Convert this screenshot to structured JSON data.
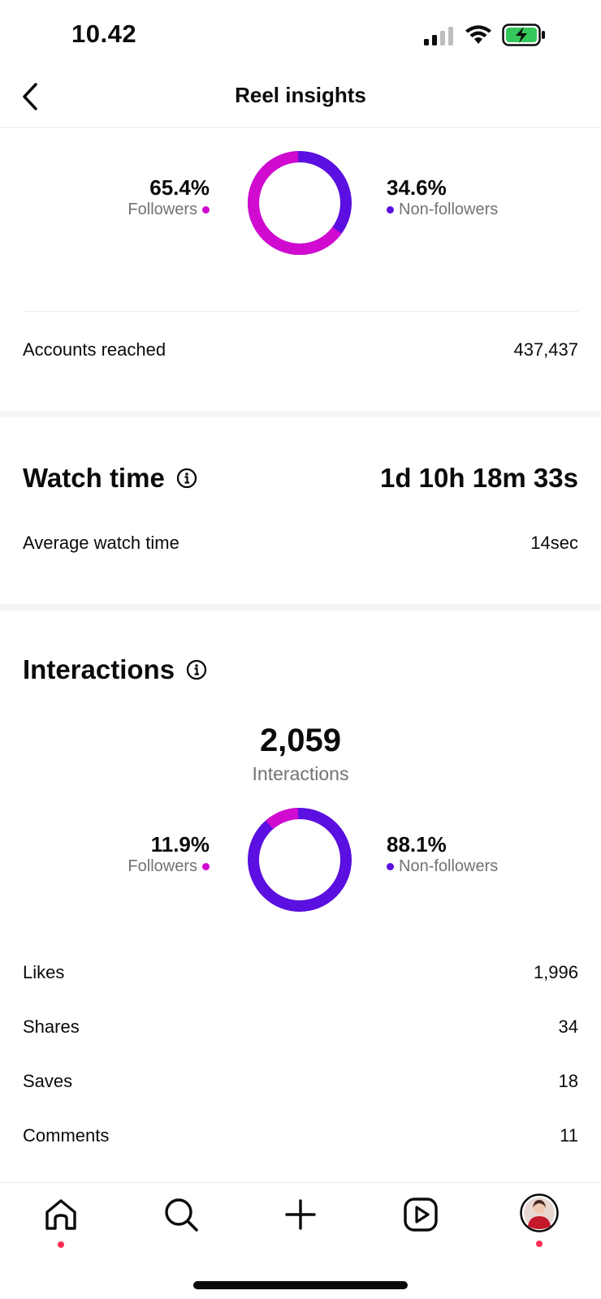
{
  "status_bar": {
    "time": "10.42"
  },
  "header": {
    "title": "Reel insights"
  },
  "colors": {
    "followers": "#d10ad0",
    "non_followers": "#5b0fe0",
    "notification": "#ff2d55"
  },
  "reach": {
    "followers_pct": "65.4%",
    "followers_label": "Followers",
    "non_followers_pct": "34.6%",
    "non_followers_label": "Non-followers",
    "followers_fraction": 0.654,
    "accounts_reached_label": "Accounts reached",
    "accounts_reached_value": "437,437"
  },
  "watch_time": {
    "title": "Watch time",
    "total": "1d 10h 18m 33s",
    "average_label": "Average watch time",
    "average_value": "14sec"
  },
  "interactions": {
    "title": "Interactions",
    "total": "2,059",
    "total_label": "Interactions",
    "followers_pct": "11.9%",
    "followers_label": "Followers",
    "non_followers_pct": "88.1%",
    "non_followers_label": "Non-followers",
    "followers_fraction": 0.119,
    "rows": [
      {
        "label": "Likes",
        "value": "1,996"
      },
      {
        "label": "Shares",
        "value": "34"
      },
      {
        "label": "Saves",
        "value": "18"
      },
      {
        "label": "Comments",
        "value": "11"
      }
    ]
  },
  "bottom_nav": {
    "items": [
      "home-icon",
      "search-icon",
      "create-icon",
      "reels-icon",
      "profile-avatar"
    ]
  }
}
